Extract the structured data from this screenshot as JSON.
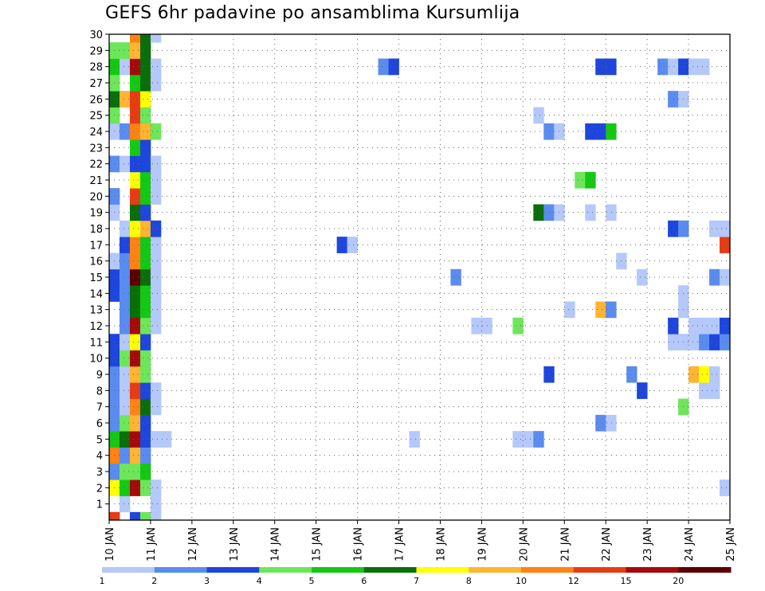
{
  "chart_data": {
    "type": "heatmap",
    "title": "GEFS 6hr padavine po ansamblima Kursumlija",
    "xlabel": "",
    "ylabel": "",
    "x_tick_labels": [
      "10 JAN",
      "11 JAN",
      "12 JAN",
      "13 JAN",
      "14 JAN",
      "15 JAN",
      "16 JAN",
      "17 JAN",
      "18 JAN",
      "19 JAN",
      "20 JAN",
      "21 JAN",
      "22 JAN",
      "23 JAN",
      "24 JAN",
      "25 JAN"
    ],
    "y_tick_labels": [
      "1",
      "2",
      "3",
      "4",
      "5",
      "6",
      "7",
      "8",
      "9",
      "10",
      "11",
      "12",
      "13",
      "14",
      "15",
      "16",
      "17",
      "18",
      "19",
      "20",
      "21",
      "22",
      "23",
      "24",
      "25",
      "26",
      "27",
      "28",
      "29",
      "30"
    ],
    "xlim": [
      0,
      60
    ],
    "ylim": [
      0,
      30
    ],
    "steps_per_day": 4,
    "grid": true,
    "colorbar": {
      "tick_labels": [
        "1",
        "2",
        "3",
        "4",
        "5",
        "6",
        "7",
        "8",
        "10",
        "12",
        "15",
        "20"
      ],
      "colors": [
        "#b4c8fa",
        "#5a8cf0",
        "#1e46dc",
        "#6ee65a",
        "#14c814",
        "#0a6e0a",
        "#ffff00",
        "#ffb432",
        "#ff8214",
        "#e63c14",
        "#a50a0a",
        "#5a0000"
      ]
    },
    "cells": [
      [
        0,
        0,
        9
      ],
      [
        2,
        0,
        2
      ],
      [
        3,
        0,
        3
      ],
      [
        4,
        0,
        0
      ],
      [
        1,
        1,
        0
      ],
      [
        4,
        1,
        0
      ],
      [
        0,
        2,
        6
      ],
      [
        1,
        2,
        4
      ],
      [
        2,
        2,
        10
      ],
      [
        3,
        2,
        3
      ],
      [
        4,
        2,
        0
      ],
      [
        59,
        2,
        0
      ],
      [
        0,
        3,
        1
      ],
      [
        1,
        3,
        3
      ],
      [
        2,
        3,
        3
      ],
      [
        3,
        3,
        4
      ],
      [
        0,
        4,
        8
      ],
      [
        1,
        4,
        1
      ],
      [
        2,
        4,
        7
      ],
      [
        3,
        4,
        1
      ],
      [
        0,
        5,
        4
      ],
      [
        1,
        5,
        5
      ],
      [
        2,
        5,
        10
      ],
      [
        3,
        5,
        2
      ],
      [
        4,
        5,
        0
      ],
      [
        5,
        5,
        0
      ],
      [
        29,
        5,
        0
      ],
      [
        39,
        5,
        0
      ],
      [
        40,
        5,
        0
      ],
      [
        41,
        5,
        1
      ],
      [
        0,
        6,
        1
      ],
      [
        1,
        6,
        3
      ],
      [
        2,
        6,
        7
      ],
      [
        3,
        6,
        2
      ],
      [
        47,
        6,
        1
      ],
      [
        48,
        6,
        0
      ],
      [
        0,
        7,
        1
      ],
      [
        1,
        7,
        0
      ],
      [
        2,
        7,
        8
      ],
      [
        3,
        7,
        5
      ],
      [
        4,
        7,
        0
      ],
      [
        55,
        7,
        3
      ],
      [
        0,
        8,
        1
      ],
      [
        1,
        8,
        0
      ],
      [
        2,
        8,
        9
      ],
      [
        3,
        8,
        2
      ],
      [
        4,
        8,
        0
      ],
      [
        51,
        8,
        2
      ],
      [
        57,
        8,
        0
      ],
      [
        58,
        8,
        0
      ],
      [
        0,
        9,
        1
      ],
      [
        1,
        9,
        0
      ],
      [
        2,
        9,
        7
      ],
      [
        3,
        9,
        3
      ],
      [
        42,
        9,
        2
      ],
      [
        50,
        9,
        1
      ],
      [
        56,
        9,
        7
      ],
      [
        57,
        9,
        6
      ],
      [
        58,
        9,
        0
      ],
      [
        0,
        10,
        2
      ],
      [
        1,
        10,
        3
      ],
      [
        2,
        10,
        10
      ],
      [
        3,
        10,
        3
      ],
      [
        0,
        11,
        2
      ],
      [
        1,
        11,
        0
      ],
      [
        2,
        11,
        6
      ],
      [
        3,
        11,
        2
      ],
      [
        54,
        11,
        0
      ],
      [
        55,
        11,
        0
      ],
      [
        56,
        11,
        0
      ],
      [
        57,
        11,
        1
      ],
      [
        58,
        11,
        2
      ],
      [
        59,
        11,
        1
      ],
      [
        1,
        12,
        1
      ],
      [
        2,
        12,
        10
      ],
      [
        3,
        12,
        3
      ],
      [
        4,
        12,
        0
      ],
      [
        35,
        12,
        0
      ],
      [
        36,
        12,
        0
      ],
      [
        39,
        12,
        3
      ],
      [
        54,
        12,
        2
      ],
      [
        56,
        12,
        0
      ],
      [
        57,
        12,
        0
      ],
      [
        58,
        12,
        0
      ],
      [
        59,
        12,
        2
      ],
      [
        1,
        13,
        1
      ],
      [
        2,
        13,
        5
      ],
      [
        3,
        13,
        4
      ],
      [
        4,
        13,
        0
      ],
      [
        44,
        13,
        0
      ],
      [
        47,
        13,
        7
      ],
      [
        48,
        13,
        1
      ],
      [
        55,
        13,
        0
      ],
      [
        0,
        14,
        2
      ],
      [
        1,
        14,
        1
      ],
      [
        2,
        14,
        5
      ],
      [
        3,
        14,
        4
      ],
      [
        4,
        14,
        0
      ],
      [
        55,
        14,
        0
      ],
      [
        0,
        15,
        2
      ],
      [
        1,
        15,
        1
      ],
      [
        2,
        15,
        11
      ],
      [
        3,
        15,
        5
      ],
      [
        4,
        15,
        0
      ],
      [
        33,
        15,
        1
      ],
      [
        51,
        15,
        0
      ],
      [
        58,
        15,
        1
      ],
      [
        59,
        15,
        0
      ],
      [
        0,
        16,
        0
      ],
      [
        1,
        16,
        1
      ],
      [
        2,
        16,
        8
      ],
      [
        3,
        16,
        4
      ],
      [
        4,
        16,
        0
      ],
      [
        49,
        16,
        0
      ],
      [
        1,
        17,
        2
      ],
      [
        2,
        17,
        8
      ],
      [
        3,
        17,
        4
      ],
      [
        4,
        17,
        0
      ],
      [
        22,
        17,
        2
      ],
      [
        23,
        17,
        0
      ],
      [
        59,
        17,
        9
      ],
      [
        1,
        18,
        0
      ],
      [
        2,
        18,
        6
      ],
      [
        3,
        18,
        7
      ],
      [
        4,
        18,
        2
      ],
      [
        54,
        18,
        2
      ],
      [
        55,
        18,
        1
      ],
      [
        58,
        18,
        0
      ],
      [
        59,
        18,
        0
      ],
      [
        0,
        19,
        0
      ],
      [
        2,
        19,
        5
      ],
      [
        3,
        19,
        2
      ],
      [
        41,
        19,
        5
      ],
      [
        42,
        19,
        1
      ],
      [
        43,
        19,
        0
      ],
      [
        46,
        19,
        0
      ],
      [
        48,
        19,
        0
      ],
      [
        0,
        20,
        1
      ],
      [
        2,
        20,
        9
      ],
      [
        3,
        20,
        4
      ],
      [
        4,
        20,
        0
      ],
      [
        2,
        21,
        6
      ],
      [
        3,
        21,
        4
      ],
      [
        4,
        21,
        0
      ],
      [
        45,
        21,
        3
      ],
      [
        46,
        21,
        4
      ],
      [
        0,
        22,
        1
      ],
      [
        1,
        22,
        0
      ],
      [
        2,
        22,
        2
      ],
      [
        3,
        22,
        2
      ],
      [
        4,
        22,
        0
      ],
      [
        2,
        23,
        4
      ],
      [
        3,
        23,
        2
      ],
      [
        0,
        24,
        0
      ],
      [
        1,
        24,
        1
      ],
      [
        2,
        24,
        8
      ],
      [
        3,
        24,
        7
      ],
      [
        4,
        24,
        3
      ],
      [
        42,
        24,
        1
      ],
      [
        43,
        24,
        0
      ],
      [
        46,
        24,
        2
      ],
      [
        47,
        24,
        2
      ],
      [
        48,
        24,
        4
      ],
      [
        0,
        25,
        3
      ],
      [
        2,
        25,
        9
      ],
      [
        3,
        25,
        3
      ],
      [
        41,
        25,
        0
      ],
      [
        0,
        26,
        5
      ],
      [
        1,
        26,
        7
      ],
      [
        2,
        26,
        9
      ],
      [
        3,
        26,
        6
      ],
      [
        54,
        26,
        1
      ],
      [
        55,
        26,
        0
      ],
      [
        0,
        27,
        3
      ],
      [
        2,
        27,
        4
      ],
      [
        3,
        27,
        5
      ],
      [
        4,
        27,
        0
      ],
      [
        0,
        28,
        4
      ],
      [
        1,
        28,
        0
      ],
      [
        2,
        28,
        10
      ],
      [
        3,
        28,
        5
      ],
      [
        4,
        28,
        0
      ],
      [
        26,
        28,
        1
      ],
      [
        27,
        28,
        2
      ],
      [
        47,
        28,
        2
      ],
      [
        48,
        28,
        2
      ],
      [
        53,
        28,
        1
      ],
      [
        54,
        28,
        0
      ],
      [
        55,
        28,
        2
      ],
      [
        56,
        28,
        0
      ],
      [
        57,
        28,
        0
      ],
      [
        0,
        29,
        3
      ],
      [
        1,
        29,
        3
      ],
      [
        2,
        29,
        7
      ],
      [
        3,
        29,
        5
      ],
      [
        2,
        30,
        8
      ],
      [
        3,
        30,
        5
      ],
      [
        4,
        30,
        0
      ]
    ]
  }
}
